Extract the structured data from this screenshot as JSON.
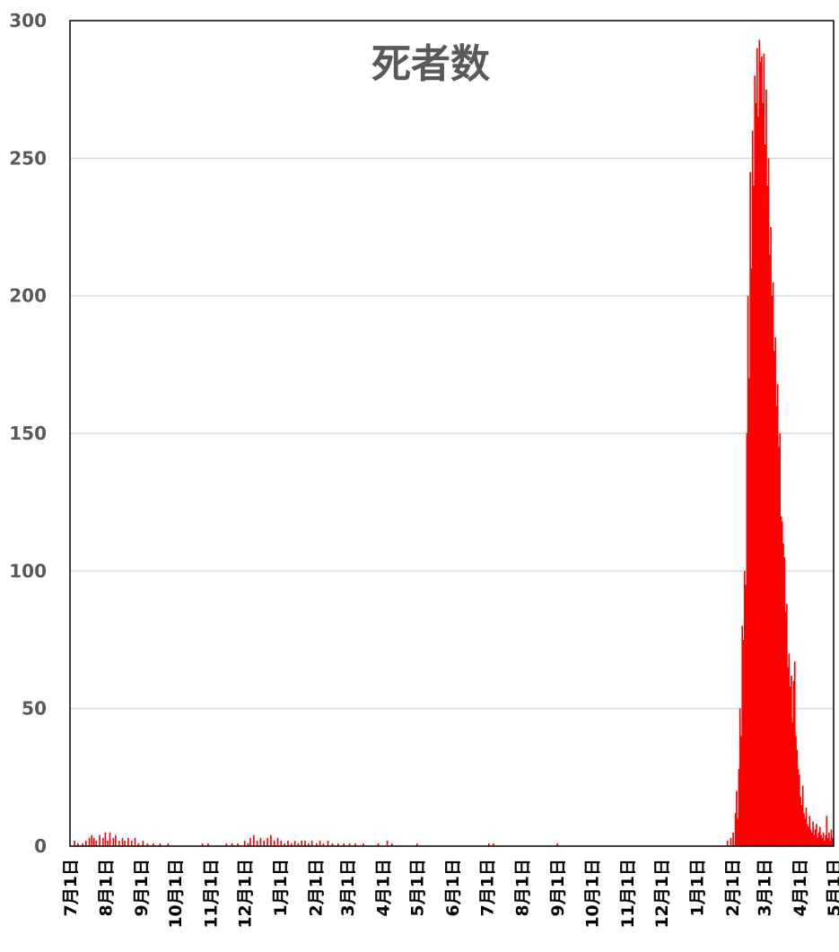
{
  "chart_data": {
    "type": "bar",
    "title": "死者数",
    "xlabel": "",
    "ylabel": "",
    "ylim": [
      0,
      300
    ],
    "yticks": [
      0,
      50,
      100,
      150,
      200,
      250,
      300
    ],
    "grid": true,
    "legend": "none",
    "bar_color": "#ff0000",
    "x_tick_labels": [
      "7月1日",
      "8月1日",
      "9月1日",
      "10月1日",
      "11月1日",
      "12月1日",
      "1月1日",
      "2月1日",
      "3月1日",
      "4月1日",
      "5月1日",
      "6月1日",
      "7月1日",
      "8月1日",
      "9月1日",
      "10月1日",
      "11月1日",
      "12月1日",
      "1月1日",
      "2月1日",
      "3月1日",
      "4月1日",
      "5月1日"
    ],
    "series": [
      {
        "points": [
          {
            "date": "2020-07-05",
            "value": 2
          },
          {
            "date": "2020-07-08",
            "value": 1
          },
          {
            "date": "2020-07-12",
            "value": 1
          },
          {
            "date": "2020-07-15",
            "value": 2
          },
          {
            "date": "2020-07-18",
            "value": 3
          },
          {
            "date": "2020-07-20",
            "value": 4
          },
          {
            "date": "2020-07-22",
            "value": 3
          },
          {
            "date": "2020-07-24",
            "value": 2
          },
          {
            "date": "2020-07-27",
            "value": 4
          },
          {
            "date": "2020-07-30",
            "value": 3
          },
          {
            "date": "2020-08-01",
            "value": 5
          },
          {
            "date": "2020-08-03",
            "value": 2
          },
          {
            "date": "2020-08-05",
            "value": 5
          },
          {
            "date": "2020-08-08",
            "value": 3
          },
          {
            "date": "2020-08-10",
            "value": 4
          },
          {
            "date": "2020-08-13",
            "value": 2
          },
          {
            "date": "2020-08-16",
            "value": 3
          },
          {
            "date": "2020-08-18",
            "value": 2
          },
          {
            "date": "2020-08-21",
            "value": 3
          },
          {
            "date": "2020-08-24",
            "value": 2
          },
          {
            "date": "2020-08-27",
            "value": 3
          },
          {
            "date": "2020-08-30",
            "value": 1
          },
          {
            "date": "2020-09-03",
            "value": 2
          },
          {
            "date": "2020-09-07",
            "value": 1
          },
          {
            "date": "2020-09-12",
            "value": 1
          },
          {
            "date": "2020-09-18",
            "value": 1
          },
          {
            "date": "2020-09-25",
            "value": 1
          },
          {
            "date": "2020-10-25",
            "value": 1
          },
          {
            "date": "2020-10-30",
            "value": 1
          },
          {
            "date": "2020-11-15",
            "value": 1
          },
          {
            "date": "2020-11-20",
            "value": 1
          },
          {
            "date": "2020-11-25",
            "value": 1
          },
          {
            "date": "2020-12-01",
            "value": 2
          },
          {
            "date": "2020-12-04",
            "value": 1
          },
          {
            "date": "2020-12-06",
            "value": 3
          },
          {
            "date": "2020-12-09",
            "value": 4
          },
          {
            "date": "2020-12-12",
            "value": 2
          },
          {
            "date": "2020-12-15",
            "value": 3
          },
          {
            "date": "2020-12-18",
            "value": 2
          },
          {
            "date": "2020-12-21",
            "value": 3
          },
          {
            "date": "2020-12-24",
            "value": 4
          },
          {
            "date": "2020-12-27",
            "value": 2
          },
          {
            "date": "2020-12-30",
            "value": 3
          },
          {
            "date": "2021-01-02",
            "value": 2
          },
          {
            "date": "2021-01-05",
            "value": 1
          },
          {
            "date": "2021-01-08",
            "value": 2
          },
          {
            "date": "2021-01-11",
            "value": 1
          },
          {
            "date": "2021-01-14",
            "value": 2
          },
          {
            "date": "2021-01-17",
            "value": 1
          },
          {
            "date": "2021-01-20",
            "value": 2
          },
          {
            "date": "2021-01-23",
            "value": 2
          },
          {
            "date": "2021-01-26",
            "value": 1
          },
          {
            "date": "2021-01-29",
            "value": 2
          },
          {
            "date": "2021-02-02",
            "value": 1
          },
          {
            "date": "2021-02-05",
            "value": 2
          },
          {
            "date": "2021-02-08",
            "value": 1
          },
          {
            "date": "2021-02-12",
            "value": 2
          },
          {
            "date": "2021-02-16",
            "value": 1
          },
          {
            "date": "2021-02-21",
            "value": 1
          },
          {
            "date": "2021-02-26",
            "value": 1
          },
          {
            "date": "2021-03-03",
            "value": 1
          },
          {
            "date": "2021-03-08",
            "value": 1
          },
          {
            "date": "2021-03-15",
            "value": 1
          },
          {
            "date": "2021-03-28",
            "value": 1
          },
          {
            "date": "2021-04-05",
            "value": 2
          },
          {
            "date": "2021-04-09",
            "value": 1
          },
          {
            "date": "2021-05-01",
            "value": 1
          },
          {
            "date": "2021-07-03",
            "value": 1
          },
          {
            "date": "2021-07-07",
            "value": 1
          },
          {
            "date": "2021-09-01",
            "value": 1
          },
          {
            "date": "2022-01-28",
            "value": 2
          },
          {
            "date": "2022-01-31",
            "value": 3
          },
          {
            "date": "2022-02-02",
            "value": 5
          },
          {
            "date": "2022-02-04",
            "value": 12
          },
          {
            "date": "2022-02-05",
            "value": 20
          },
          {
            "date": "2022-02-06",
            "value": 10
          },
          {
            "date": "2022-02-07",
            "value": 28
          },
          {
            "date": "2022-02-08",
            "value": 50
          },
          {
            "date": "2022-02-09",
            "value": 40
          },
          {
            "date": "2022-02-10",
            "value": 80
          },
          {
            "date": "2022-02-11",
            "value": 75
          },
          {
            "date": "2022-02-12",
            "value": 100
          },
          {
            "date": "2022-02-13",
            "value": 95
          },
          {
            "date": "2022-02-14",
            "value": 150
          },
          {
            "date": "2022-02-15",
            "value": 200
          },
          {
            "date": "2022-02-16",
            "value": 170
          },
          {
            "date": "2022-02-17",
            "value": 245
          },
          {
            "date": "2022-02-18",
            "value": 210
          },
          {
            "date": "2022-02-19",
            "value": 260
          },
          {
            "date": "2022-02-20",
            "value": 240
          },
          {
            "date": "2022-02-21",
            "value": 280
          },
          {
            "date": "2022-02-22",
            "value": 270
          },
          {
            "date": "2022-02-23",
            "value": 290
          },
          {
            "date": "2022-02-24",
            "value": 265
          },
          {
            "date": "2022-02-25",
            "value": 293
          },
          {
            "date": "2022-02-26",
            "value": 285
          },
          {
            "date": "2022-02-27",
            "value": 287
          },
          {
            "date": "2022-02-28",
            "value": 270
          },
          {
            "date": "2022-03-01",
            "value": 288
          },
          {
            "date": "2022-03-02",
            "value": 255
          },
          {
            "date": "2022-03-03",
            "value": 275
          },
          {
            "date": "2022-03-04",
            "value": 240
          },
          {
            "date": "2022-03-05",
            "value": 250
          },
          {
            "date": "2022-03-06",
            "value": 215
          },
          {
            "date": "2022-03-07",
            "value": 225
          },
          {
            "date": "2022-03-08",
            "value": 200
          },
          {
            "date": "2022-03-09",
            "value": 205
          },
          {
            "date": "2022-03-10",
            "value": 180
          },
          {
            "date": "2022-03-11",
            "value": 185
          },
          {
            "date": "2022-03-12",
            "value": 160
          },
          {
            "date": "2022-03-13",
            "value": 168
          },
          {
            "date": "2022-03-14",
            "value": 145
          },
          {
            "date": "2022-03-15",
            "value": 150
          },
          {
            "date": "2022-03-16",
            "value": 120
          },
          {
            "date": "2022-03-17",
            "value": 118
          },
          {
            "date": "2022-03-18",
            "value": 110
          },
          {
            "date": "2022-03-19",
            "value": 105
          },
          {
            "date": "2022-03-20",
            "value": 85
          },
          {
            "date": "2022-03-21",
            "value": 88
          },
          {
            "date": "2022-03-22",
            "value": 65
          },
          {
            "date": "2022-03-23",
            "value": 70
          },
          {
            "date": "2022-03-24",
            "value": 58
          },
          {
            "date": "2022-03-25",
            "value": 62
          },
          {
            "date": "2022-03-26",
            "value": 45
          },
          {
            "date": "2022-03-27",
            "value": 60
          },
          {
            "date": "2022-03-28",
            "value": 67
          },
          {
            "date": "2022-03-29",
            "value": 40
          },
          {
            "date": "2022-03-30",
            "value": 35
          },
          {
            "date": "2022-03-31",
            "value": 28
          },
          {
            "date": "2022-04-01",
            "value": 26
          },
          {
            "date": "2022-04-02",
            "value": 18
          },
          {
            "date": "2022-04-03",
            "value": 15
          },
          {
            "date": "2022-04-04",
            "value": 22
          },
          {
            "date": "2022-04-05",
            "value": 12
          },
          {
            "date": "2022-04-06",
            "value": 10
          },
          {
            "date": "2022-04-07",
            "value": 14
          },
          {
            "date": "2022-04-08",
            "value": 8
          },
          {
            "date": "2022-04-09",
            "value": 7
          },
          {
            "date": "2022-04-10",
            "value": 11
          },
          {
            "date": "2022-04-11",
            "value": 6
          },
          {
            "date": "2022-04-12",
            "value": 5
          },
          {
            "date": "2022-04-13",
            "value": 9
          },
          {
            "date": "2022-04-14",
            "value": 4
          },
          {
            "date": "2022-04-15",
            "value": 6
          },
          {
            "date": "2022-04-16",
            "value": 8
          },
          {
            "date": "2022-04-17",
            "value": 3
          },
          {
            "date": "2022-04-18",
            "value": 5
          },
          {
            "date": "2022-04-19",
            "value": 7
          },
          {
            "date": "2022-04-20",
            "value": 4
          },
          {
            "date": "2022-04-21",
            "value": 3
          },
          {
            "date": "2022-04-22",
            "value": 5
          },
          {
            "date": "2022-04-23",
            "value": 2
          },
          {
            "date": "2022-04-24",
            "value": 4
          },
          {
            "date": "2022-04-25",
            "value": 11
          },
          {
            "date": "2022-04-26",
            "value": 3
          },
          {
            "date": "2022-04-27",
            "value": 5
          },
          {
            "date": "2022-04-28",
            "value": 2
          },
          {
            "date": "2022-04-29",
            "value": 6
          },
          {
            "date": "2022-04-30",
            "value": 3
          }
        ]
      }
    ]
  }
}
